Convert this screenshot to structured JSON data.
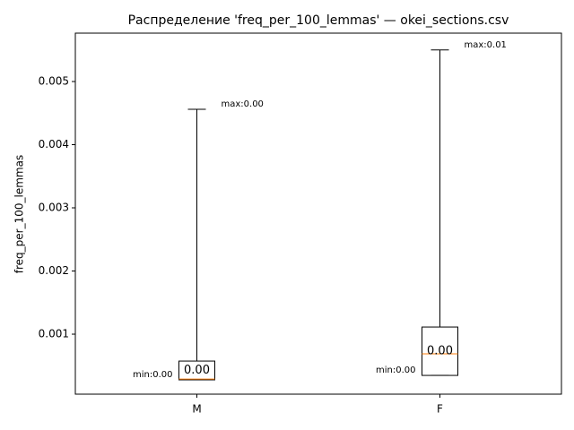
{
  "chart_data": {
    "type": "box",
    "title": "Распределение 'freq_per_100_lemmas' — okei_sections.csv",
    "y_label": "freq_per_100_lemmas",
    "categories": [
      "M",
      "F"
    ],
    "boxes": [
      {
        "min": 0.000277,
        "q1": 0.000277,
        "median": 0.00029,
        "q3": 0.000574,
        "max": 0.00456,
        "min_label": "min:0.00",
        "max_label": "max:0.00",
        "median_label": "0.00"
      },
      {
        "min": 0.000347,
        "q1": 0.000347,
        "median": 0.000688,
        "q3": 0.001113,
        "max": 0.0055,
        "min_label": "min:0.00",
        "max_label": "max:0.01",
        "median_label": "0.00"
      }
    ],
    "box_color": "#000000",
    "median_color": "#ff7f0e",
    "ylim": [
      5e-05,
      0.005766
    ],
    "yticks": [
      0.001,
      0.002,
      0.003,
      0.004,
      0.005
    ]
  }
}
